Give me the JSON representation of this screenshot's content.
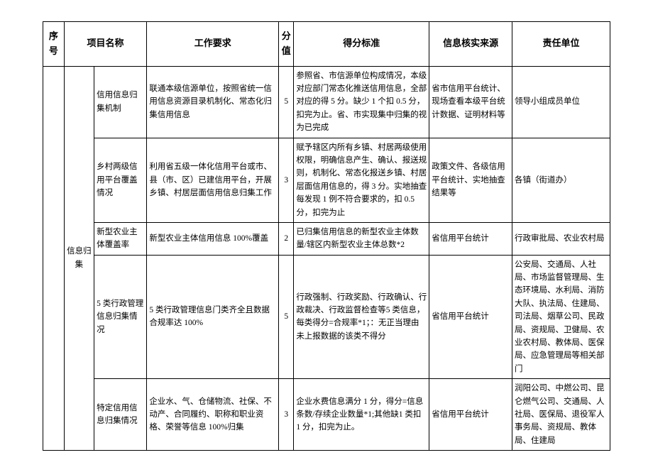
{
  "headers": {
    "seq": "序号",
    "project": "项目名称",
    "requirement": "工作要求",
    "score": "分值",
    "standard": "得分标准",
    "source": "信息核实来源",
    "responsible": "责任单位"
  },
  "category": "信息归集",
  "rows": [
    {
      "project": "信用信息归集机制",
      "requirement": "联通本级信源单位，按照省统一信用信息资源目录机制化、常态化归集信用信息",
      "score": "5",
      "standard": "参照省、市信源单位构成情况，本级对应部门常态化推送信用信息，全部对应的得 5 分。缺少 1 个扣 0.5 分，扣完为止。省、市实现集中归集的视为已完成",
      "source": "省市信用平台统计、现场查看本级平台统计数据、证明材料等",
      "responsible": "领导小组成员单位"
    },
    {
      "project": "乡村两级信用平台覆盖情况",
      "requirement": "利用省五级一体化信用平台或市、县（市、区）已建信用平台，开展乡镇、村居层面信用信息归集工作",
      "score": "3",
      "standard": "赋予辖区内所有乡镇、村居两级使用权限，明确信息产生、确认、报送规则，机制化、常态化报送乡镇、村居层面信用信息的，得 3 分。实地抽查每发现 1 例不符合要求的，扣 0.5 分，扣完为止",
      "source": "政策文件、各级信用平台统计、实地抽查结果等",
      "responsible": "各镇（街道办）"
    },
    {
      "project": "新型农业主体覆盖率",
      "requirement": "新型农业主体信用信息 100%覆盖",
      "score": "2",
      "standard": "已归集信用信息的新型农业主体数量/辖区内新型农业主体总数*2",
      "source": "省信用平台统计",
      "responsible": "行政审批局、农业农村局"
    },
    {
      "project": "5 类行政管理信息归集情况",
      "requirement": "5 类行政管理信息门类齐全且数据合规率达 100%",
      "score": "5",
      "standard": "行政强制、行政奖励、行政确认、行政裁决、行政监督检查等5 类信息，每类得分=合规率*1；：无正当理由未上报数据的该类不得分",
      "source": "省信用平台统计",
      "responsible": "公安局、交通局、人社局、市场监督管理局、生态环境局、水利局、消防大队、执法局、住建局、司法局、烟草公司、民政局、资规局、卫健局、农业农村局、教体局、医保局、应急管理局等相关部门"
    },
    {
      "project": "特定信用信息归集情况",
      "requirement": "企业水、气、仓储物流、社保、不动产、合同履约、职称和职业资格、荣誉等信息 100%归集",
      "score": "3",
      "standard": "企业水费信息满分 1 分，得分=信息条数/存续企业数量*1;其他缺1 类扣 1 分，扣完为止。",
      "source": "省信用平台统计",
      "responsible": "润阳公司、中燃公司、昆仑燃气公司、交通局、人社局、医保局、退役军人事务局、资规局、教体局、住建局"
    }
  ]
}
